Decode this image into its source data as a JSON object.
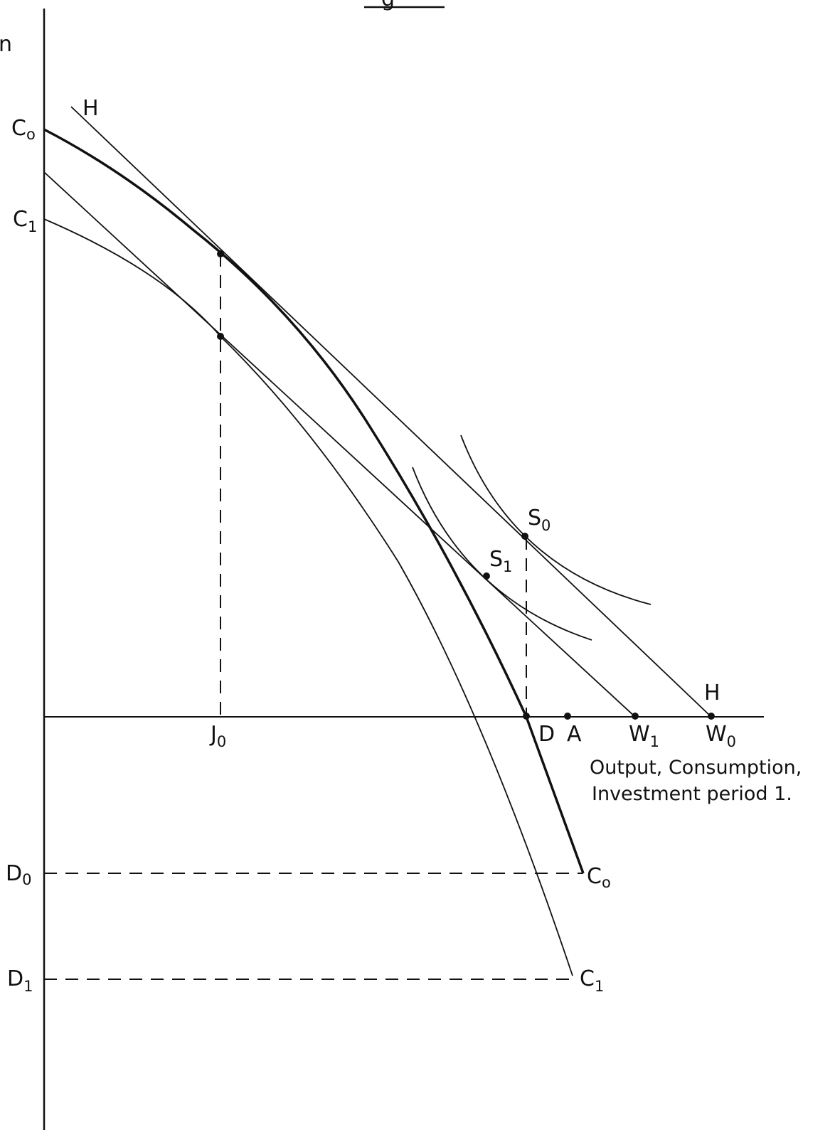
{
  "figure": {
    "title_fragment": "g",
    "y_axis_fragment": "n",
    "x_axis_caption": [
      "Output, Consumption,",
      "Investment period 1."
    ],
    "labels": {
      "C0_axis": {
        "main": "C",
        "sub": "o"
      },
      "C1_axis": {
        "main": "C",
        "sub": "1"
      },
      "H_top": "H",
      "H_bottom": "H",
      "S0": {
        "main": "S",
        "sub": "0"
      },
      "S1": {
        "main": "S",
        "sub": "1"
      },
      "J0": {
        "main": "J",
        "sub": "0"
      },
      "D": "D",
      "A": "A",
      "W1": {
        "main": "W",
        "sub": "1"
      },
      "W0": {
        "main": "W",
        "sub": "0"
      },
      "D0": {
        "main": "D",
        "sub": "0"
      },
      "D1": {
        "main": "D",
        "sub": "1"
      },
      "C0_end": {
        "main": "C",
        "sub": "o"
      },
      "C1_end": {
        "main": "C",
        "sub": "1"
      }
    }
  }
}
